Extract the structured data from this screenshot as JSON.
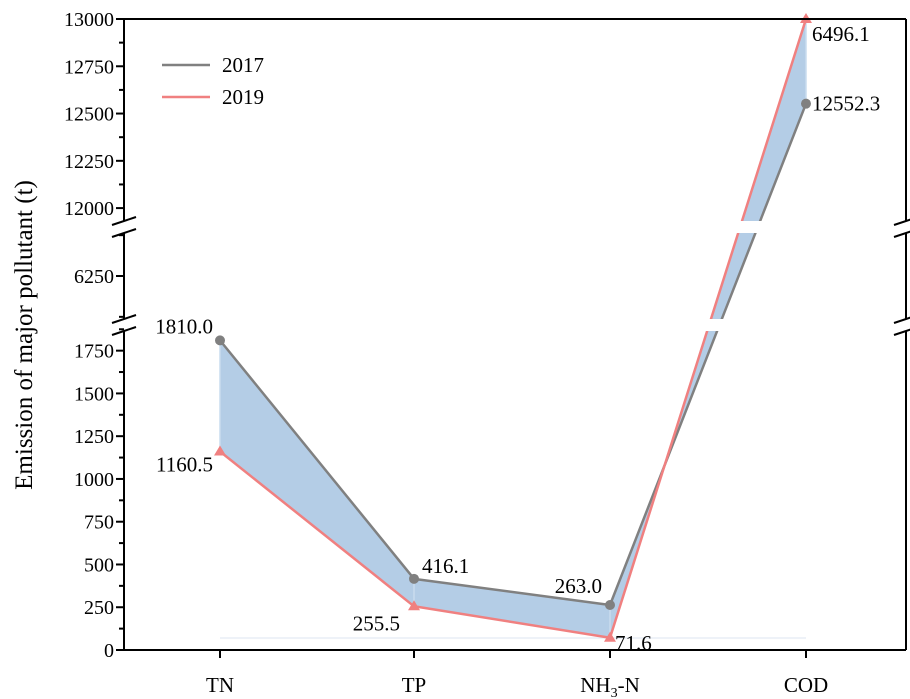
{
  "chart_data": {
    "type": "line",
    "categories": [
      "TN",
      "TP",
      "NH3-N",
      "COD"
    ],
    "category_display": [
      {
        "main": "TN",
        "sub": "",
        "tail": ""
      },
      {
        "main": "TP",
        "sub": "",
        "tail": ""
      },
      {
        "main": "NH",
        "sub": "3",
        "tail": "-N"
      },
      {
        "main": "COD",
        "sub": "",
        "tail": ""
      }
    ],
    "series": [
      {
        "name": "2017",
        "values": [
          1810.0,
          416.1,
          263.0,
          12552.3
        ],
        "labels": [
          "1810.0",
          "416.1",
          "263.0",
          "12552.3"
        ],
        "color": "#808080",
        "marker": "circle"
      },
      {
        "name": "2019",
        "values": [
          1160.5,
          255.5,
          71.6,
          6496.1
        ],
        "labels": [
          "1160.5",
          "255.5",
          "71.6",
          "6496.1"
        ],
        "color": "#f08080",
        "marker": "triangle"
      }
    ],
    "fill_between_color": "#b4cde6",
    "ylabel": "Emission of major pollutant (t)",
    "xlabel": "",
    "axis_breaks": [
      [
        1900,
        6100
      ],
      [
        6400,
        11900
      ]
    ],
    "y_segments": [
      {
        "range": [
          0,
          1900
        ],
        "ticks": [
          "0",
          "250",
          "500",
          "750",
          "1000",
          "1250",
          "1500",
          "1750"
        ]
      },
      {
        "range": [
          6100,
          6400
        ],
        "ticks": [
          "6250"
        ]
      },
      {
        "range": [
          11900,
          13000
        ],
        "ticks": [
          "12000",
          "12250",
          "12500",
          "12750",
          "13000"
        ]
      }
    ],
    "legend_position": "top-left",
    "grid": false
  }
}
